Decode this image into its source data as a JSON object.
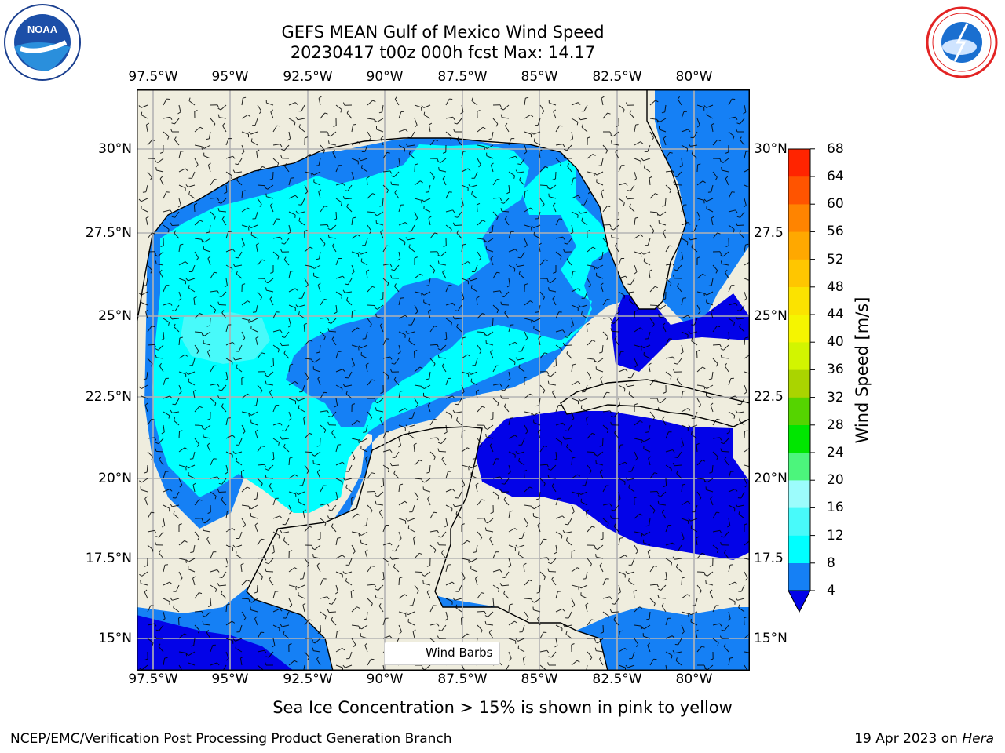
{
  "header": {
    "title_line1": "GEFS MEAN Gulf of Mexico Wind Speed",
    "title_line2": "20230417 t00z 000h fcst   Max: 14.17"
  },
  "logos": {
    "left": "NOAA",
    "right": "NATIONAL WEATHER SERVICE"
  },
  "map": {
    "lon_labels": [
      "97.5°W",
      "95°W",
      "92.5°W",
      "90°W",
      "87.5°W",
      "85°W",
      "82.5°W",
      "80°W"
    ],
    "lat_labels": [
      "30°N",
      "27.5°N",
      "25°N",
      "22.5°N",
      "20°N",
      "17.5°N",
      "15°N"
    ],
    "right_lat_labels": [
      "30°N",
      "27.5",
      "25°N",
      "22.5",
      "20°N",
      "17.5",
      "15°N"
    ],
    "colors": {
      "land": "#efedde",
      "ws_4_8": "#1580f5",
      "ws_below_4": "#0303e8",
      "ws_8_12": "#00ffff",
      "ws_12_16": "#48fafa",
      "ws_16_20": "#9cfcfc",
      "gridline": "#b3b3b3"
    },
    "legend_label": "Wind Barbs"
  },
  "colorbar": {
    "label": "Wind Speed [m/s]",
    "ticks": [
      "4",
      "8",
      "12",
      "16",
      "20",
      "24",
      "28",
      "32",
      "36",
      "40",
      "44",
      "48",
      "52",
      "56",
      "60",
      "64",
      "68"
    ],
    "colors": [
      "#1580f5",
      "#00ffff",
      "#48fafa",
      "#9cfcfc",
      "#4cf57c",
      "#00e600",
      "#55d400",
      "#aad400",
      "#d2f500",
      "#f5f500",
      "#fbe300",
      "#ffc600",
      "#ffa800",
      "#ff8400",
      "#ff5400",
      "#ff2400",
      "#0303e8"
    ]
  },
  "footer": {
    "note": "Sea Ice Concentration > 15% is shown in pink to yellow",
    "left": "NCEP/EMC/Verification Post Processing Product Generation Branch",
    "right_date": "19 Apr 2023 on ",
    "right_host": "Hera"
  }
}
